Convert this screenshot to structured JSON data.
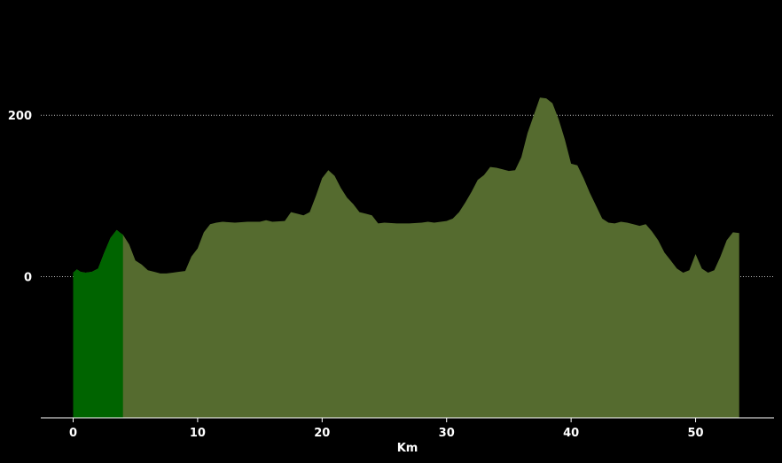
{
  "chart_data": {
    "type": "area",
    "title": "",
    "xlabel": "Km",
    "ylabel": "",
    "xlim": [
      -2.6,
      56.3
    ],
    "ylim": [
      -175,
      310
    ],
    "x_ticks": [
      0,
      10,
      20,
      30,
      40,
      50
    ],
    "x_tick_labels": [
      "0",
      "10",
      "20",
      "30",
      "40",
      "50"
    ],
    "y_ticks": [
      0,
      200
    ],
    "y_tick_labels": [
      "0",
      "200"
    ],
    "grid": "y-dotted",
    "baseline": -175,
    "highlight_range": [
      0,
      4
    ],
    "colors": {
      "background": "#000000",
      "area": "#556b2f",
      "highlight": "#006400",
      "grid": "#bbbbbb",
      "axis": "#ffffff",
      "text": "#ffffff"
    },
    "series": [
      {
        "x": [
          0,
          0.3,
          0.6,
          1,
          1.5,
          2,
          2.5,
          3,
          3.5,
          3.8,
          4,
          4.5,
          5,
          5.5,
          6,
          6.5,
          7,
          7.5,
          8,
          8.5,
          9,
          9.5,
          10,
          10.5,
          11,
          11.5,
          12,
          13,
          14,
          15,
          15.5,
          16,
          17,
          17.5,
          18,
          18.5,
          19,
          19.5,
          20,
          20.5,
          21,
          21.5,
          22,
          22.5,
          23,
          23.5,
          24,
          24.5,
          25,
          26,
          27,
          28,
          28.5,
          29,
          30,
          30.5,
          31,
          31.5,
          32,
          32.5,
          33,
          33.5,
          34,
          34.5,
          35,
          35.5,
          36,
          36.5,
          37,
          37.5,
          38,
          38.5,
          39,
          39.5,
          40,
          40.5,
          41,
          41.5,
          42,
          42.5,
          43,
          43.5,
          44,
          44.5,
          45,
          45.5,
          46,
          46.5,
          47,
          47.5,
          48,
          48.5,
          49,
          49.5,
          50,
          50.5,
          51,
          51.5,
          52,
          52.5,
          53,
          53.5
        ],
        "values": [
          5,
          9,
          6,
          5,
          6,
          10,
          30,
          48,
          58,
          54,
          52,
          40,
          20,
          15,
          8,
          6,
          4,
          4,
          5,
          6,
          7,
          25,
          35,
          55,
          65,
          67,
          68,
          67,
          68,
          68,
          70,
          68,
          69,
          80,
          78,
          76,
          80,
          100,
          122,
          132,
          125,
          110,
          98,
          90,
          80,
          78,
          76,
          66,
          67,
          66,
          66,
          67,
          68,
          67,
          69,
          72,
          80,
          92,
          105,
          120,
          126,
          136,
          135,
          133,
          131,
          132,
          148,
          178,
          200,
          222,
          221,
          215,
          195,
          170,
          140,
          138,
          122,
          104,
          88,
          72,
          67,
          66,
          68,
          67,
          65,
          63,
          65,
          56,
          45,
          30,
          20,
          10,
          5,
          8,
          28,
          10,
          5,
          8,
          25,
          45,
          55,
          54
        ]
      }
    ]
  }
}
